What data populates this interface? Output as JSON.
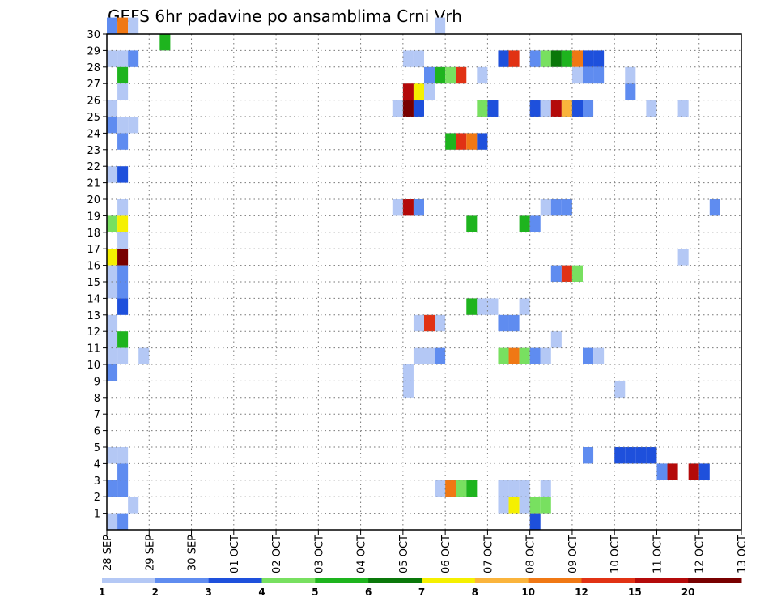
{
  "chart_data": {
    "type": "heatmap",
    "title": "GEFS 6hr padavine po ansamblima Crni Vrh",
    "xlabel": "",
    "ylabel": "",
    "x_ticks": [
      "28 SEP",
      "29 SEP",
      "30 SEP",
      "01 OCT",
      "02 OCT",
      "03 OCT",
      "04 OCT",
      "05 OCT",
      "06 OCT",
      "07 OCT",
      "08 OCT",
      "09 OCT",
      "10 OCT",
      "11 OCT",
      "12 OCT",
      "13 OCT"
    ],
    "y_ticks": [
      "1",
      "2",
      "3",
      "4",
      "5",
      "6",
      "7",
      "8",
      "9",
      "10",
      "11",
      "12",
      "13",
      "14",
      "15",
      "16",
      "17",
      "18",
      "19",
      "20",
      "21",
      "22",
      "23",
      "24",
      "25",
      "26",
      "27",
      "28",
      "29",
      "30"
    ],
    "x_range_steps": [
      0,
      60
    ],
    "y_range": [
      0,
      30
    ],
    "grid": true,
    "legend_position": "bottom",
    "color_levels": [
      {
        "label": "1",
        "color": "#b4c8f5"
      },
      {
        "label": "2",
        "color": "#5f8cf0"
      },
      {
        "label": "3",
        "color": "#1e50dc"
      },
      {
        "label": "4",
        "color": "#78e060"
      },
      {
        "label": "5",
        "color": "#1eb41e"
      },
      {
        "label": "6",
        "color": "#0a780a"
      },
      {
        "label": "7",
        "color": "#f5f000"
      },
      {
        "label": "8",
        "color": "#fab43c"
      },
      {
        "label": "10",
        "color": "#f07814"
      },
      {
        "label": "12",
        "color": "#e13214"
      },
      {
        "label": "15",
        "color": "#b40a0a"
      },
      {
        "label": "20",
        "color": "#780000"
      }
    ],
    "cells": [
      [
        0,
        30,
        1
      ],
      [
        1,
        30,
        8
      ],
      [
        2,
        30,
        0
      ],
      [
        31,
        30,
        0
      ],
      [
        5,
        29,
        4
      ],
      [
        0,
        28,
        0
      ],
      [
        1,
        28,
        0
      ],
      [
        2,
        28,
        1
      ],
      [
        28,
        28,
        0
      ],
      [
        29,
        28,
        0
      ],
      [
        37,
        28,
        2
      ],
      [
        38,
        28,
        9
      ],
      [
        40,
        28,
        1
      ],
      [
        41,
        28,
        3
      ],
      [
        42,
        28,
        5
      ],
      [
        43,
        28,
        4
      ],
      [
        44,
        28,
        8
      ],
      [
        45,
        28,
        2
      ],
      [
        46,
        28,
        2
      ],
      [
        1,
        27,
        4
      ],
      [
        30,
        27,
        1
      ],
      [
        31,
        27,
        4
      ],
      [
        32,
        27,
        3
      ],
      [
        33,
        27,
        9
      ],
      [
        35,
        27,
        0
      ],
      [
        44,
        27,
        0
      ],
      [
        45,
        27,
        1
      ],
      [
        46,
        27,
        1
      ],
      [
        49,
        27,
        0
      ],
      [
        1,
        26,
        0
      ],
      [
        28,
        26,
        10
      ],
      [
        29,
        26,
        6
      ],
      [
        30,
        26,
        0
      ],
      [
        49,
        26,
        1
      ],
      [
        0,
        25,
        0
      ],
      [
        27,
        25,
        0
      ],
      [
        28,
        25,
        11
      ],
      [
        29,
        25,
        2
      ],
      [
        35,
        25,
        3
      ],
      [
        36,
        25,
        2
      ],
      [
        40,
        25,
        2
      ],
      [
        41,
        25,
        0
      ],
      [
        42,
        25,
        10
      ],
      [
        43,
        25,
        7
      ],
      [
        44,
        25,
        2
      ],
      [
        45,
        25,
        1
      ],
      [
        51,
        25,
        0
      ],
      [
        54,
        25,
        0
      ],
      [
        0,
        24,
        1
      ],
      [
        1,
        24,
        0
      ],
      [
        2,
        24,
        0
      ],
      [
        1,
        23,
        1
      ],
      [
        32,
        23,
        4
      ],
      [
        33,
        23,
        9
      ],
      [
        34,
        23,
        8
      ],
      [
        35,
        23,
        2
      ],
      [
        0,
        21,
        0
      ],
      [
        1,
        21,
        2
      ],
      [
        1,
        19,
        0
      ],
      [
        27,
        19,
        0
      ],
      [
        28,
        19,
        10
      ],
      [
        29,
        19,
        1
      ],
      [
        41,
        19,
        0
      ],
      [
        42,
        19,
        1
      ],
      [
        43,
        19,
        1
      ],
      [
        57,
        19,
        1
      ],
      [
        0,
        18,
        3
      ],
      [
        1,
        18,
        6
      ],
      [
        34,
        18,
        4
      ],
      [
        39,
        18,
        4
      ],
      [
        40,
        18,
        1
      ],
      [
        1,
        17,
        0
      ],
      [
        0,
        16,
        6
      ],
      [
        1,
        16,
        11
      ],
      [
        54,
        16,
        0
      ],
      [
        0,
        15,
        0
      ],
      [
        1,
        15,
        1
      ],
      [
        42,
        15,
        1
      ],
      [
        43,
        15,
        9
      ],
      [
        44,
        15,
        3
      ],
      [
        0,
        14,
        0
      ],
      [
        1,
        14,
        1
      ],
      [
        1,
        13,
        2
      ],
      [
        34,
        13,
        4
      ],
      [
        35,
        13,
        0
      ],
      [
        36,
        13,
        0
      ],
      [
        39,
        13,
        0
      ],
      [
        0,
        12,
        0
      ],
      [
        29,
        12,
        0
      ],
      [
        30,
        12,
        9
      ],
      [
        31,
        12,
        0
      ],
      [
        37,
        12,
        1
      ],
      [
        38,
        12,
        1
      ],
      [
        0,
        11,
        0
      ],
      [
        1,
        11,
        4
      ],
      [
        42,
        11,
        0
      ],
      [
        0,
        10,
        0
      ],
      [
        1,
        10,
        0
      ],
      [
        3,
        10,
        0
      ],
      [
        29,
        10,
        0
      ],
      [
        30,
        10,
        0
      ],
      [
        31,
        10,
        1
      ],
      [
        37,
        10,
        3
      ],
      [
        38,
        10,
        8
      ],
      [
        39,
        10,
        3
      ],
      [
        40,
        10,
        1
      ],
      [
        41,
        10,
        0
      ],
      [
        45,
        10,
        1
      ],
      [
        46,
        10,
        0
      ],
      [
        0,
        9,
        1
      ],
      [
        28,
        9,
        0
      ],
      [
        28,
        8,
        0
      ],
      [
        48,
        8,
        0
      ],
      [
        0,
        4,
        0
      ],
      [
        1,
        4,
        0
      ],
      [
        45,
        4,
        1
      ],
      [
        48,
        4,
        2
      ],
      [
        49,
        4,
        2
      ],
      [
        50,
        4,
        2
      ],
      [
        51,
        4,
        2
      ],
      [
        1,
        3,
        1
      ],
      [
        52,
        3,
        1
      ],
      [
        53,
        3,
        10
      ],
      [
        55,
        3,
        10
      ],
      [
        56,
        3,
        2
      ],
      [
        0,
        2,
        1
      ],
      [
        1,
        2,
        1
      ],
      [
        31,
        2,
        0
      ],
      [
        32,
        2,
        8
      ],
      [
        33,
        2,
        3
      ],
      [
        34,
        2,
        4
      ],
      [
        37,
        2,
        0
      ],
      [
        38,
        2,
        0
      ],
      [
        39,
        2,
        0
      ],
      [
        41,
        2,
        0
      ],
      [
        2,
        1,
        0
      ],
      [
        37,
        1,
        0
      ],
      [
        38,
        1,
        6
      ],
      [
        39,
        1,
        0
      ],
      [
        40,
        1,
        3
      ],
      [
        41,
        1,
        3
      ],
      [
        0,
        0,
        0
      ],
      [
        1,
        0,
        1
      ],
      [
        40,
        0,
        2
      ]
    ]
  }
}
